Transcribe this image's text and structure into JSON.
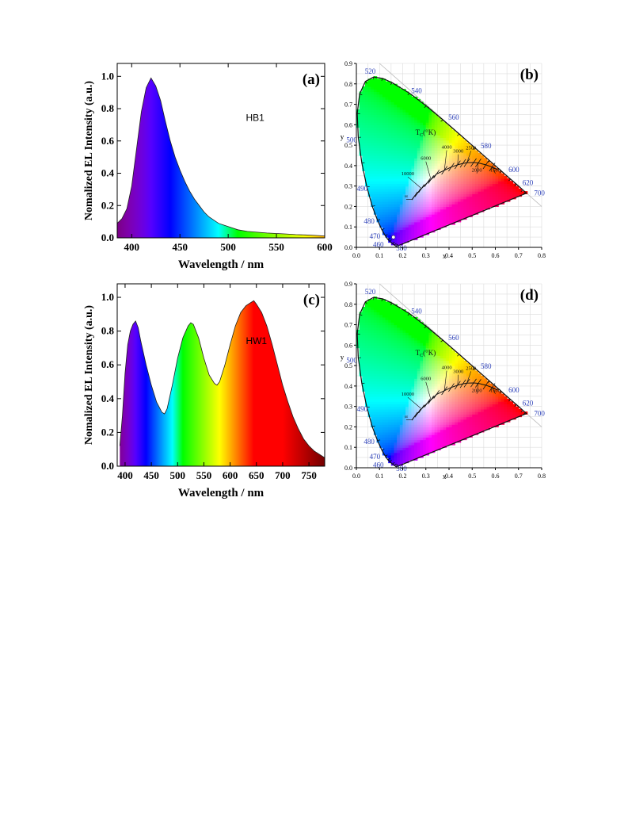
{
  "chart_data": [
    {
      "id": "a",
      "type": "area",
      "panel_label": "(a)",
      "annotation": "HB1",
      "xlabel": "Wavelength / nm",
      "ylabel": "Nomalized EL Intensity (a.u.)",
      "xlim": [
        385,
        600
      ],
      "ylim": [
        0.0,
        1.08
      ],
      "xticks": [
        400,
        450,
        500,
        550,
        600
      ],
      "yticks": [
        0.0,
        0.2,
        0.4,
        0.6,
        0.8,
        1.0
      ],
      "grid": false,
      "x": [
        385,
        390,
        395,
        400,
        405,
        410,
        415,
        420,
        425,
        430,
        435,
        440,
        445,
        450,
        455,
        460,
        465,
        470,
        475,
        480,
        485,
        490,
        495,
        500,
        505,
        510,
        520,
        530,
        540,
        550,
        560,
        570,
        580,
        590,
        600
      ],
      "values": [
        0.09,
        0.12,
        0.18,
        0.32,
        0.55,
        0.78,
        0.93,
        0.99,
        0.94,
        0.85,
        0.72,
        0.6,
        0.5,
        0.42,
        0.35,
        0.29,
        0.24,
        0.2,
        0.16,
        0.13,
        0.11,
        0.09,
        0.08,
        0.07,
        0.06,
        0.05,
        0.04,
        0.035,
        0.03,
        0.027,
        0.024,
        0.02,
        0.018,
        0.015,
        0.012
      ]
    },
    {
      "id": "b",
      "type": "scatter",
      "panel_label": "(b)",
      "xlabel": "x",
      "ylabel": "y",
      "xlim": [
        0.0,
        0.8
      ],
      "ylim": [
        0.0,
        0.9
      ],
      "xticks": [
        0.0,
        0.1,
        0.2,
        0.3,
        0.4,
        0.5,
        0.6,
        0.7,
        0.8
      ],
      "yticks": [
        0.0,
        0.1,
        0.2,
        0.3,
        0.4,
        0.5,
        0.6,
        0.7,
        0.8,
        0.9
      ],
      "grid": true,
      "point": {
        "x": 0.16,
        "y": 0.05
      },
      "tc_label": "T",
      "tc_sub": "C",
      "tc_unit": "(°K)",
      "locus_labels": [
        "380",
        "460",
        "470",
        "480",
        "490",
        "500",
        "520",
        "540",
        "560",
        "580",
        "600",
        "620",
        "700"
      ],
      "cct_labels": [
        "10000",
        "6000",
        "4000",
        "3000",
        "2500",
        "2000",
        "1500",
        "∞"
      ]
    },
    {
      "id": "c",
      "type": "area",
      "panel_label": "(c)",
      "annotation": "HW1",
      "xlabel": "Wavelength / nm",
      "ylabel": "Nomalized EL Intensity (a.u.)",
      "xlim": [
        385,
        780
      ],
      "ylim": [
        0.0,
        1.08
      ],
      "xticks": [
        400,
        450,
        500,
        550,
        600,
        650,
        700,
        750
      ],
      "yticks": [
        0.0,
        0.2,
        0.4,
        0.6,
        0.8,
        1.0
      ],
      "grid": false,
      "x": [
        390,
        395,
        400,
        405,
        410,
        415,
        420,
        425,
        430,
        440,
        450,
        460,
        470,
        475,
        480,
        490,
        500,
        510,
        520,
        525,
        530,
        540,
        550,
        560,
        570,
        575,
        580,
        590,
        600,
        610,
        620,
        630,
        640,
        645,
        650,
        660,
        670,
        680,
        690,
        700,
        710,
        720,
        730,
        740,
        750,
        760,
        770,
        780
      ],
      "values": [
        0.12,
        0.3,
        0.55,
        0.72,
        0.8,
        0.84,
        0.86,
        0.82,
        0.74,
        0.6,
        0.48,
        0.38,
        0.32,
        0.31,
        0.34,
        0.48,
        0.64,
        0.76,
        0.83,
        0.85,
        0.84,
        0.76,
        0.64,
        0.54,
        0.49,
        0.48,
        0.5,
        0.6,
        0.72,
        0.83,
        0.91,
        0.95,
        0.97,
        0.98,
        0.96,
        0.91,
        0.83,
        0.72,
        0.6,
        0.48,
        0.38,
        0.29,
        0.22,
        0.16,
        0.12,
        0.09,
        0.07,
        0.05
      ]
    },
    {
      "id": "d",
      "type": "scatter",
      "panel_label": "(d)",
      "xlabel": "x",
      "ylabel": "y",
      "xlim": [
        0.0,
        0.8
      ],
      "ylim": [
        0.0,
        0.9
      ],
      "xticks": [
        0.0,
        0.1,
        0.2,
        0.3,
        0.4,
        0.5,
        0.6,
        0.7,
        0.8
      ],
      "yticks": [
        0.0,
        0.1,
        0.2,
        0.3,
        0.4,
        0.5,
        0.6,
        0.7,
        0.8,
        0.9
      ],
      "grid": true,
      "point": null,
      "tc_label": "T",
      "tc_sub": "C",
      "tc_unit": "(°K)",
      "locus_labels": [
        "380",
        "460",
        "470",
        "480",
        "490",
        "500",
        "520",
        "540",
        "560",
        "580",
        "600",
        "620",
        "700"
      ],
      "cct_labels": [
        "10000",
        "6000",
        "4000",
        "3000",
        "2500",
        "2000",
        "1500",
        "∞"
      ]
    }
  ]
}
